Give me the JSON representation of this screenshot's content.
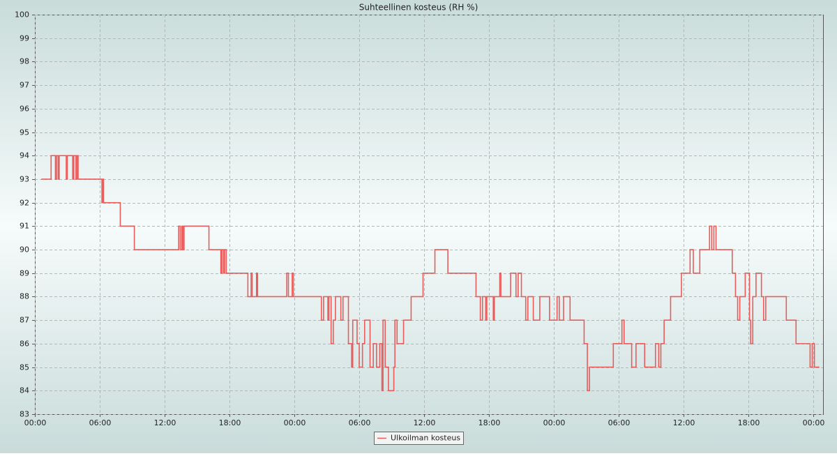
{
  "chart_data": {
    "type": "line",
    "step": "post",
    "grid": true,
    "title": "Suhteellinen kosteus (RH %)",
    "xlim": [
      0,
      72.9
    ],
    "ylim": [
      83,
      100
    ],
    "yticks": [
      83,
      84,
      85,
      86,
      87,
      88,
      89,
      90,
      91,
      92,
      93,
      94,
      95,
      96,
      97,
      98,
      99,
      100
    ],
    "xticks": [
      {
        "value": 0,
        "label": "00:00"
      },
      {
        "value": 6,
        "label": "06:00"
      },
      {
        "value": 12,
        "label": "12:00"
      },
      {
        "value": 18,
        "label": "18:00"
      },
      {
        "value": 24,
        "label": "00:00"
      },
      {
        "value": 30,
        "label": "06:00"
      },
      {
        "value": 36,
        "label": "12:00"
      },
      {
        "value": 42,
        "label": "18:00"
      },
      {
        "value": 48,
        "label": "00:00"
      },
      {
        "value": 54,
        "label": "06:00"
      },
      {
        "value": 60,
        "label": "12:00"
      },
      {
        "value": 66,
        "label": "18:00"
      },
      {
        "value": 72,
        "label": "00:00"
      }
    ],
    "x": [
      0.65,
      1.5,
      1.9,
      2.0,
      2.15,
      2.25,
      2.9,
      3.0,
      3.5,
      3.6,
      3.8,
      3.9,
      4.0,
      6.2,
      6.3,
      6.35,
      7.9,
      9.2,
      13.3,
      13.45,
      13.6,
      13.7,
      13.8,
      16.1,
      17.2,
      17.3,
      17.45,
      17.55,
      17.7,
      19.7,
      20.0,
      20.1,
      20.5,
      20.6,
      23.3,
      23.45,
      23.8,
      23.9,
      26.5,
      26.7,
      27.1,
      27.2,
      27.4,
      27.6,
      27.8,
      28.3,
      28.5,
      29.0,
      29.3,
      29.4,
      29.8,
      30.0,
      30.3,
      30.5,
      31.0,
      31.3,
      31.6,
      31.9,
      32.1,
      32.2,
      32.4,
      32.7,
      33.2,
      33.3,
      33.5,
      34.1,
      34.8,
      35.9,
      37.0,
      38.2,
      40.8,
      41.2,
      41.4,
      41.7,
      41.8,
      42.4,
      42.5,
      43.0,
      43.1,
      44.0,
      44.5,
      44.7,
      45.0,
      45.4,
      45.6,
      46.1,
      46.7,
      47.6,
      48.3,
      48.5,
      48.9,
      49.5,
      50.8,
      51.1,
      51.3,
      53.5,
      54.3,
      54.5,
      55.2,
      55.6,
      56.4,
      57.4,
      57.7,
      57.9,
      58.2,
      58.8,
      59.8,
      60.6,
      60.9,
      61.5,
      62.4,
      62.6,
      62.8,
      63.0,
      64.5,
      64.8,
      65.0,
      65.2,
      65.7,
      66.1,
      66.2,
      66.4,
      66.7,
      67.2,
      67.4,
      67.6,
      69.5,
      70.4,
      71.7,
      71.9,
      72.1,
      72.5
    ],
    "series": [
      {
        "name": "Ulkoilman kosteus",
        "color": "#e85c5c",
        "values": [
          93,
          94,
          93,
          94,
          93,
          94,
          93,
          94,
          93,
          94,
          93,
          94,
          93,
          92,
          93,
          92,
          91,
          90,
          91,
          90,
          91,
          90,
          91,
          90,
          89,
          90,
          89,
          90,
          89,
          88,
          89,
          88,
          89,
          88,
          89,
          88,
          89,
          88,
          87,
          88,
          87,
          88,
          86,
          87,
          88,
          87,
          88,
          86,
          85,
          87,
          86,
          85,
          86,
          87,
          85,
          86,
          85,
          86,
          84,
          87,
          85,
          84,
          85,
          87,
          86,
          87,
          88,
          89,
          90,
          89,
          88,
          87,
          88,
          87,
          88,
          87,
          88,
          89,
          88,
          89,
          88,
          89,
          88,
          87,
          88,
          87,
          88,
          87,
          88,
          87,
          88,
          87,
          86,
          84,
          85,
          86,
          87,
          86,
          85,
          86,
          85,
          86,
          85,
          86,
          87,
          88,
          89,
          90,
          89,
          90,
          91,
          90,
          91,
          90,
          89,
          88,
          87,
          88,
          89,
          87,
          86,
          88,
          89,
          88,
          87,
          88,
          87,
          86,
          85,
          86,
          85,
          85
        ]
      }
    ]
  }
}
